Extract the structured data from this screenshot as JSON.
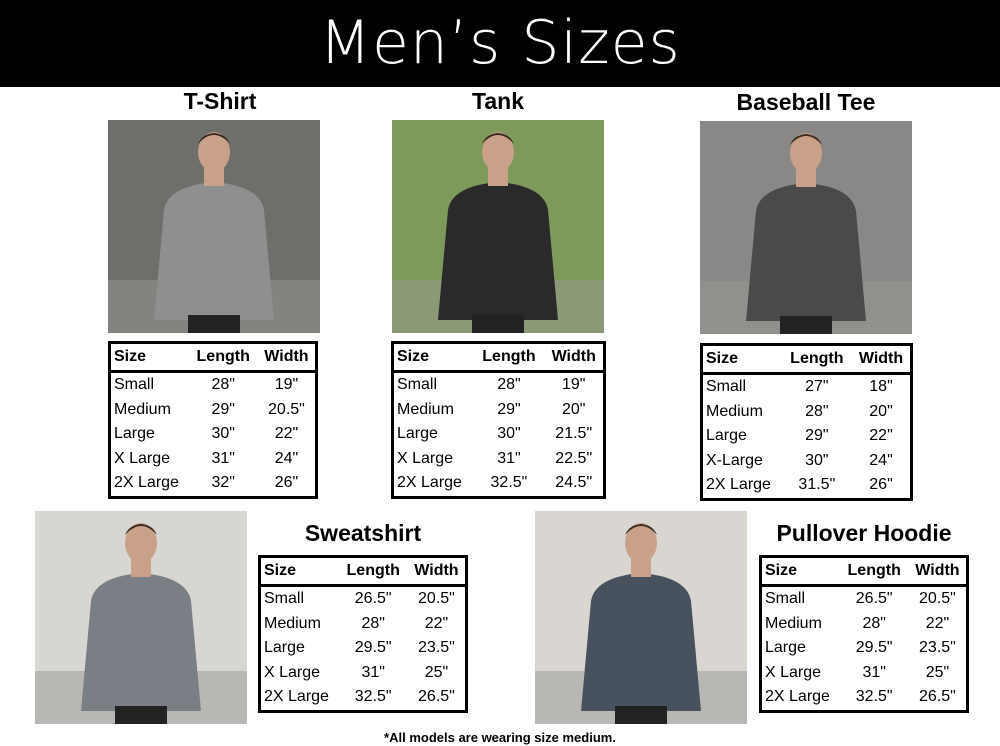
{
  "header": {
    "title": "Men’s Sizes"
  },
  "columns": [
    "Size",
    "Length",
    "Width"
  ],
  "products": [
    {
      "id": "t-shirt",
      "title": "T-Shirt",
      "shirt_color": "#8f8f8f",
      "bg": "#6e6e6a",
      "rows": [
        [
          "Small",
          "28\"",
          "19\""
        ],
        [
          "Medium",
          "29\"",
          "20.5\""
        ],
        [
          "Large",
          "30\"",
          "22\""
        ],
        [
          "X Large",
          "31\"",
          "24\""
        ],
        [
          "2X Large",
          "32\"",
          "26\""
        ]
      ]
    },
    {
      "id": "tank",
      "title": "Tank",
      "shirt_color": "#2a2a2a",
      "bg": "#7d9a5a",
      "rows": [
        [
          "Small",
          "28\"",
          "19\""
        ],
        [
          "Medium",
          "29\"",
          "20\""
        ],
        [
          "Large",
          "30\"",
          "21.5\""
        ],
        [
          "X Large",
          "31\"",
          "22.5\""
        ],
        [
          "2X Large",
          "32.5\"",
          "24.5\""
        ]
      ]
    },
    {
      "id": "baseball-tee",
      "title": "Baseball Tee",
      "shirt_color": "#4a4a4a",
      "bg": "#8a8886",
      "rows": [
        [
          "Small",
          "27\"",
          "18\""
        ],
        [
          "Medium",
          "28\"",
          "20\""
        ],
        [
          "Large",
          "29\"",
          "22\""
        ],
        [
          "X-Large",
          "30\"",
          "24\""
        ],
        [
          "2X Large",
          "31.5\"",
          "26\""
        ]
      ]
    },
    {
      "id": "sweatshirt",
      "title": "Sweatshirt",
      "shirt_color": "#7a7f86",
      "bg": "#d8d6d2",
      "rows": [
        [
          "Small",
          "26.5\"",
          "20.5\""
        ],
        [
          "Medium",
          "28\"",
          "22\""
        ],
        [
          "Large",
          "29.5\"",
          "23.5\""
        ],
        [
          "X Large",
          "31\"",
          "25\""
        ],
        [
          "2X Large",
          "32.5\"",
          "26.5\""
        ]
      ]
    },
    {
      "id": "pullover-hoodie",
      "title": "Pullover Hoodie",
      "shirt_color": "#47525e",
      "bg": "#d9d6d2",
      "rows": [
        [
          "Small",
          "26.5\"",
          "20.5\""
        ],
        [
          "Medium",
          "28\"",
          "22\""
        ],
        [
          "Large",
          "29.5\"",
          "23.5\""
        ],
        [
          "X Large",
          "31\"",
          "25\""
        ],
        [
          "2X Large",
          "32.5\"",
          "26.5\""
        ]
      ]
    }
  ],
  "footnote": "*All models are wearing size medium."
}
